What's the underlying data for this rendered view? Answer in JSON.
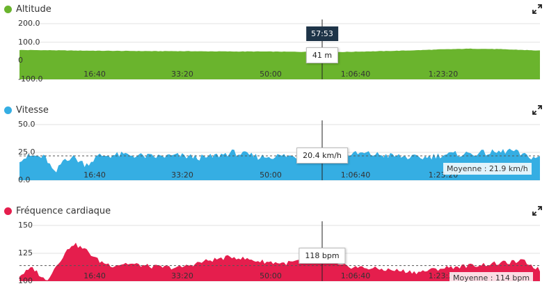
{
  "cursor_time": "57:53",
  "x_ticks": [
    "16:40",
    "33:20",
    "50:00",
    "1:06:40",
    "1:23:20"
  ],
  "charts": [
    {
      "title": "Altitude",
      "color": "#6ab42d",
      "y_ticks": [
        "200.0",
        "100.0",
        "0",
        "-100.0"
      ],
      "tooltip": "41 m",
      "average": ""
    },
    {
      "title": "Vitesse",
      "color": "#35aee3",
      "y_ticks": [
        "50.0",
        "25.0",
        "0.0"
      ],
      "tooltip": "20.4 km/h",
      "average": "Moyenne : 21.9 km/h"
    },
    {
      "title": "Fréquence cardiaque",
      "color": "#e51e4d",
      "y_ticks": [
        "150",
        "125",
        "100"
      ],
      "tooltip": "118 bpm",
      "average": "Moyenne : 114 bpm"
    }
  ],
  "chart_data": [
    {
      "type": "area",
      "title": "Altitude",
      "ylim": [
        -100,
        200
      ],
      "x_range_s": [
        0,
        5880
      ],
      "x": [
        0,
        300,
        600,
        900,
        1200,
        1500,
        1800,
        2100,
        2400,
        2700,
        3000,
        3300,
        3473,
        3600,
        3900,
        4200,
        4500,
        4800,
        5100,
        5400,
        5700,
        5880
      ],
      "values": [
        58,
        57,
        55,
        54,
        53,
        52,
        52,
        51,
        50,
        50,
        49,
        48,
        41,
        47,
        50,
        53,
        57,
        62,
        65,
        63,
        58,
        55
      ]
    },
    {
      "type": "area",
      "title": "Vitesse",
      "ylim": [
        0,
        50
      ],
      "mean": 21.9,
      "x_range_s": [
        0,
        5880
      ],
      "x": [
        0,
        150,
        300,
        400,
        500,
        600,
        750,
        900,
        1200,
        1500,
        1800,
        2100,
        2400,
        2700,
        3000,
        3300,
        3473,
        3600,
        3900,
        4200,
        4500,
        4800,
        5100,
        5400,
        5550,
        5700,
        5880
      ],
      "values": [
        19,
        22,
        20,
        5,
        19,
        21,
        14,
        22,
        23,
        21,
        22,
        20,
        25,
        21,
        22,
        20,
        20.4,
        23,
        24,
        22,
        20,
        23,
        24,
        25,
        27,
        22,
        20
      ]
    },
    {
      "type": "area",
      "title": "Fréquence cardiaque",
      "ylim": [
        100,
        150
      ],
      "mean": 114,
      "x_range_s": [
        0,
        5880
      ],
      "x": [
        0,
        150,
        300,
        450,
        600,
        750,
        900,
        1050,
        1200,
        1500,
        1800,
        2100,
        2400,
        2700,
        3000,
        3300,
        3473,
        3600,
        3900,
        4200,
        4500,
        4800,
        5100,
        5400,
        5700,
        5880
      ],
      "values": [
        105,
        112,
        100,
        118,
        134,
        128,
        118,
        114,
        116,
        113,
        112,
        118,
        122,
        118,
        116,
        120,
        118,
        114,
        112,
        110,
        108,
        112,
        114,
        116,
        118,
        110
      ]
    }
  ]
}
